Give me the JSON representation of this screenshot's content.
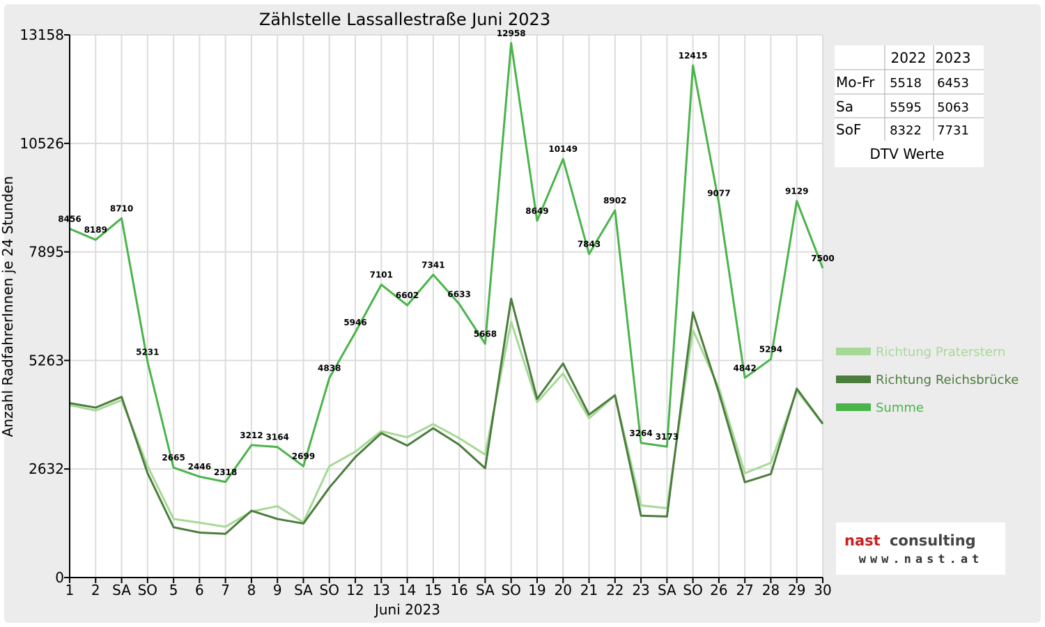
{
  "chart_data": {
    "type": "line",
    "title": "Zählstelle Lassallestraße Juni 2023",
    "xlabel": "Juni 2023",
    "ylabel": "Anzahl RadfahrerInnen je 24 Stunden",
    "ylim": [
      0,
      13158
    ],
    "y_ticks": [
      "0",
      "2632",
      "5263",
      "7895",
      "10526",
      "13158"
    ],
    "grid": true,
    "legend_position": "right",
    "categories": [
      "1",
      "2",
      "SA",
      "SO",
      "5",
      "6",
      "7",
      "8",
      "9",
      "SA",
      "SO",
      "12",
      "13",
      "14",
      "15",
      "16",
      "SA",
      "SO",
      "19",
      "20",
      "21",
      "22",
      "23",
      "SA",
      "SO",
      "26",
      "27",
      "28",
      "29",
      "30"
    ],
    "highlight_categories": [
      "SO",
      "8"
    ],
    "highlight_color": "#e00000",
    "series": [
      {
        "name": "Richtung Praterstern",
        "color": "#a6d996",
        "values": [
          4180,
          4050,
          4300,
          2700,
          1420,
          1330,
          1230,
          1600,
          1730,
          1340,
          2700,
          3050,
          3550,
          3400,
          3720,
          3380,
          2980,
          6200,
          4250,
          4950,
          3860,
          4420,
          1750,
          1680,
          6000,
          4600,
          2530,
          2780,
          4530,
          3720
        ]
      },
      {
        "name": "Richtung Reichsbrücke",
        "color": "#4b7d3c",
        "values": [
          4230,
          4120,
          4380,
          2530,
          1220,
          1090,
          1060,
          1620,
          1420,
          1310,
          2180,
          2920,
          3500,
          3200,
          3620,
          3220,
          2650,
          6760,
          4330,
          5190,
          3950,
          4420,
          1500,
          1480,
          6430,
          4480,
          2310,
          2510,
          4580,
          3730
        ]
      },
      {
        "name": "Summe",
        "color": "#4ab44a",
        "values": [
          8456,
          8189,
          8710,
          5231,
          2665,
          2446,
          2318,
          3212,
          3164,
          2699,
          4838,
          5946,
          7101,
          6602,
          7341,
          6633,
          5668,
          12958,
          8649,
          10149,
          7843,
          8902,
          3264,
          3173,
          12415,
          9077,
          4842,
          5294,
          9129,
          7500
        ]
      }
    ],
    "data_labels": [
      "8456",
      "8189",
      "8710",
      "5231",
      "2665",
      "2446",
      "2318",
      "3212",
      "3164",
      "2699",
      "4838",
      "5946",
      "7101",
      "6602",
      "7341",
      "6633",
      "5668",
      "12958",
      "8649",
      "10149",
      "7843",
      "8902",
      "3264",
      "3173",
      "12415",
      "9077",
      "4842",
      "5294",
      "9129",
      "7500"
    ]
  },
  "dtv_table": {
    "caption": "DTV Werte",
    "headers": [
      "",
      "2022",
      "2023"
    ],
    "rows": [
      [
        "Mo-Fr",
        "5518",
        "6453"
      ],
      [
        "Sa",
        "5595",
        "5063"
      ],
      [
        "SoF",
        "8322",
        "7731"
      ]
    ]
  },
  "logo": {
    "name_part1": "nast",
    "name_part2": "consulting",
    "url": "www.nast.at",
    "color_part1": "#cc1f1f",
    "color_part2": "#444444"
  }
}
